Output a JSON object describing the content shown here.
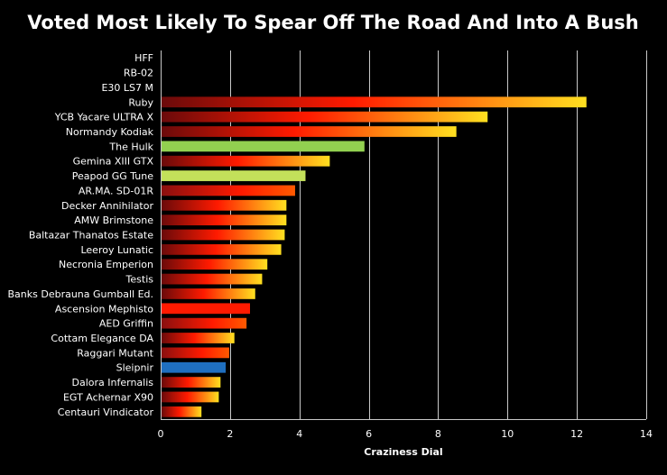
{
  "chart_data": {
    "type": "bar",
    "orientation": "horizontal",
    "title": "Voted Most Likely To Spear Off The Road And Into A Bush",
    "xlabel": "Craziness Dial",
    "ylabel": "",
    "xlim": [
      0,
      14
    ],
    "xticks": [
      0,
      2,
      4,
      6,
      8,
      10,
      12,
      14
    ],
    "grid": true,
    "categories": [
      "HFF",
      "RB-02",
      "E30 LS7 M",
      "Ruby",
      "YCB Yacare ULTRA X",
      "Normandy Kodiak",
      "The Hulk",
      "Gemina XIII GTX",
      "Peapod GG Tune",
      "AR.MA. SD-01R",
      "Decker Annihilator",
      "AMW Brimstone",
      "Baltazar Thanatos Estate",
      "Leeroy Lunatic",
      "Necronia Emperion",
      "Testis",
      "Banks Debrauna Gumball Ed.",
      "Ascension Mephisto",
      "AED Griffin",
      "Cottam Elegance DA",
      "Raggari Mutant",
      "Sleipnir",
      "Dalora Infernalis",
      "EGT Achernar X90",
      "Centauri Vindicator"
    ],
    "values": [
      0,
      0,
      0,
      12.25,
      9.4,
      8.5,
      5.85,
      4.85,
      4.15,
      3.85,
      3.6,
      3.6,
      3.55,
      3.45,
      3.05,
      2.9,
      2.7,
      2.55,
      2.45,
      2.1,
      1.95,
      1.85,
      1.7,
      1.65,
      1.15
    ],
    "bar_styles": [
      "gradient",
      "gradient",
      "gradient",
      "gradient",
      "gradient",
      "gradient",
      "green",
      "gradient",
      "lightgreen",
      "red-gradient",
      "gradient",
      "gradient",
      "gradient",
      "gradient",
      "gradient",
      "gradient",
      "gradient",
      "solid-red",
      "red-gradient",
      "gradient",
      "red-gradient",
      "blue",
      "gradient",
      "gradient",
      "gradient"
    ],
    "colors": {
      "background": "#000000",
      "gradient_start": "#6b0a0a",
      "gradient_mid": "#ff1a00",
      "gradient_end": "#ffe020",
      "green": "#92d050",
      "lightgreen": "#c3e05a",
      "blue": "#1f6fbf",
      "solid_red": "#ff1a00",
      "gridline": "#c8c8c8",
      "text": "#ffffff"
    }
  }
}
